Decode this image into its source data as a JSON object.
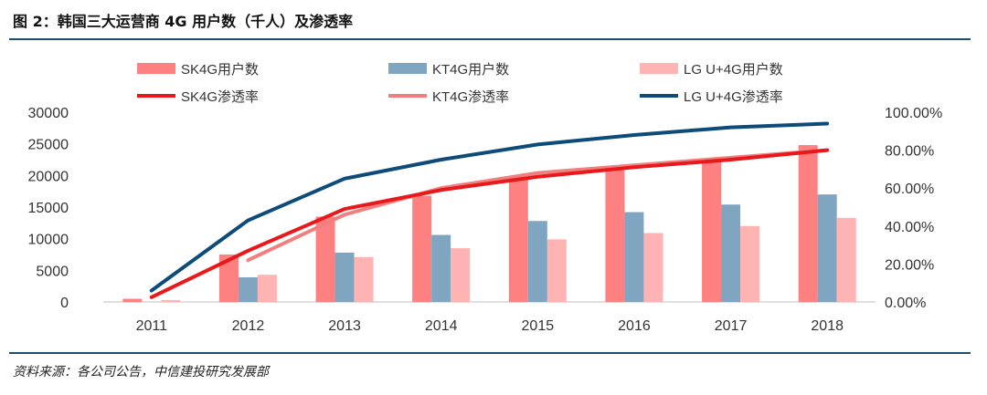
{
  "title": "图 2：韩国三大运营商 4G 用户数（千人）及渗透率",
  "source": "资料来源：各公司公告，中信建投研究发展部",
  "colors": {
    "sk_bar": "#ff8080",
    "kt_bar": "#7fa5c0",
    "lg_bar": "#ffb3b3",
    "sk_line": "#e8181b",
    "kt_line": "#f08080",
    "lg_line": "#0d4b78",
    "rule": "#1b4f72",
    "text": "#333333"
  },
  "chart_data": {
    "type": "bar",
    "categories": [
      "2011",
      "2012",
      "2013",
      "2014",
      "2015",
      "2016",
      "2017",
      "2018"
    ],
    "y_left_ticks": [
      "0",
      "5000",
      "10000",
      "15000",
      "20000",
      "25000",
      "30000"
    ],
    "y_right_ticks": [
      "0.00%",
      "20.00%",
      "40.00%",
      "60.00%",
      "80.00%",
      "100.00%"
    ],
    "ylim_left": [
      0,
      30000
    ],
    "ylim_right": [
      0,
      100
    ],
    "grid": false,
    "legend_position": "top",
    "bar_series": [
      {
        "name": "SK4G用户数",
        "values": [
          500,
          7500,
          13500,
          16800,
          19600,
          21300,
          22600,
          24800
        ]
      },
      {
        "name": "KT4G用户数",
        "values": [
          0,
          3900,
          7800,
          10600,
          12800,
          14200,
          15400,
          17000
        ]
      },
      {
        "name": "LG U+4G用户数",
        "values": [
          300,
          4300,
          7100,
          8500,
          9900,
          10900,
          12000,
          13300
        ]
      }
    ],
    "line_series": [
      {
        "name": "SK4G渗透率",
        "axis": "right",
        "values": [
          2.5,
          27,
          49,
          59,
          66,
          71,
          75,
          80
        ]
      },
      {
        "name": "KT4G渗透率",
        "axis": "right",
        "values": [
          null,
          22,
          46,
          60,
          68,
          72,
          76,
          80
        ]
      },
      {
        "name": "LG U+4G渗透率",
        "axis": "right",
        "values": [
          6,
          43,
          65,
          75,
          83,
          88,
          92,
          94
        ]
      }
    ]
  }
}
